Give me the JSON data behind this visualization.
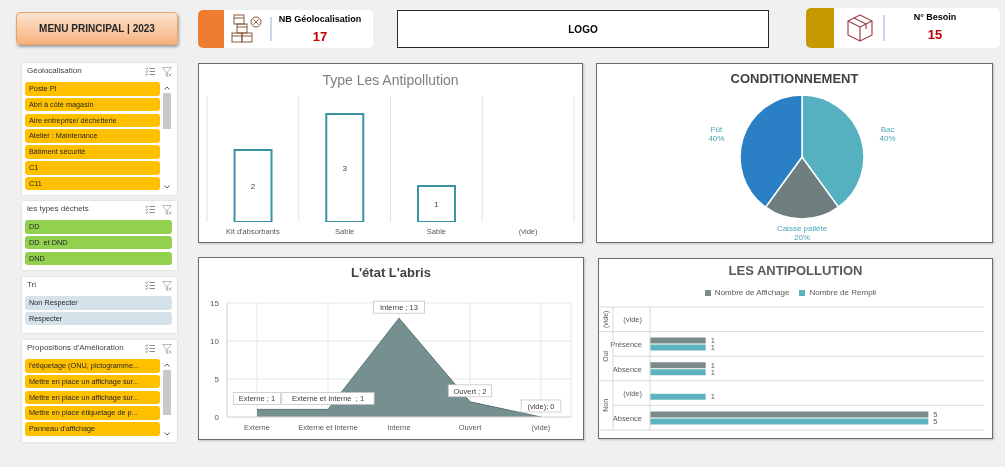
{
  "chart_data": [
    {
      "type": "other",
      "title": "MENU PRINCIPAL | 2023"
    },
    {
      "type": "other",
      "title": "NB Géolocalisation",
      "values": [
        17
      ],
      "data_labels": true
    },
    {
      "type": "other",
      "title": "LOGO"
    },
    {
      "type": "other",
      "title": "N° Besoin",
      "values": [
        15
      ],
      "data_labels": true
    },
    {
      "type": "other",
      "title": "Géolocalisation",
      "annotations": [
        "Poste PI",
        "Abri à côté magasin",
        "Aire entreprise/ déchetterie",
        "Atelier : Maintenance",
        "Bâtiment sécurité",
        "C1",
        "C11"
      ],
      "color": "#ffc000"
    },
    {
      "type": "other",
      "title": "les types déchets",
      "annotations": [
        "DD",
        "DD  et DND",
        "DND"
      ],
      "color": "#92d050"
    },
    {
      "type": "other",
      "title": "Tri",
      "annotations": [
        "Non Respecter",
        "Respecter"
      ],
      "color": "#d5e2ea"
    },
    {
      "type": "other",
      "title": "Propositions d'Amélioration",
      "annotations": [
        "l'étiquetage (ONU, pictogramme...",
        "Mettre en place un affichage sur...",
        "Mettre en place un affichage sur...",
        "Mettre en place étiquetage de p...",
        "Panneau d'affichage"
      ],
      "color": "#ffc000"
    },
    {
      "type": "bar",
      "title": "Type Les Antipollution",
      "categories": [
        "Kit d'absorbants",
        "Sable",
        "Sable",
        "(vide)"
      ],
      "values": [
        2,
        3,
        1,
        null
      ],
      "color": "#3a93a5",
      "data_labels": true,
      "grid": "x",
      "tick_labels": "x"
    },
    {
      "type": "pie",
      "title": "CONDITIONNEMENT",
      "categories": [
        "Bac",
        "Caisse palléte",
        "Fût"
      ],
      "values": [
        40,
        20,
        40
      ],
      "colors": [
        "#55b0bf",
        "#6f7f80",
        "#2b7fc5"
      ],
      "value_labels": [
        "40%",
        "20%",
        "40%"
      ]
    },
    {
      "type": "area",
      "title": "L'état L'abris",
      "categories": [
        "Externe",
        "Externe et Interne",
        "Interne",
        "Ouvert",
        "(vide)"
      ],
      "values": [
        1,
        1,
        13,
        2,
        0
      ],
      "color": "#768f8f",
      "ylim": [
        0,
        15
      ],
      "yticks": [
        0,
        5,
        10,
        15
      ],
      "grid": true,
      "value_labels": [
        "Externe ; 1",
        "Externe et Interne  ; 1",
        "Interne ; 13",
        "Ouvert ; 2",
        "(vide); 0"
      ]
    },
    {
      "type": "bar",
      "orientation": "horizontal",
      "title": "LES ANTIPOLLUTION",
      "categories": [
        "(vide)",
        "Présence",
        "Absence",
        "(vide)",
        "Absence"
      ],
      "series": [
        {
          "name": "Nombre de Affichage",
          "color": "#7b8b8c",
          "values": [
            null,
            1,
            1,
            null,
            5
          ]
        },
        {
          "name": "Nombre de Rempli",
          "color": "#5cb3bf",
          "values": [
            null,
            1,
            1,
            1,
            5
          ]
        }
      ],
      "data_labels": true,
      "legend": "top",
      "grid": "y",
      "tick_labels": "y",
      "annotations": [
        "(vide)",
        "Oui",
        "Non"
      ]
    }
  ]
}
